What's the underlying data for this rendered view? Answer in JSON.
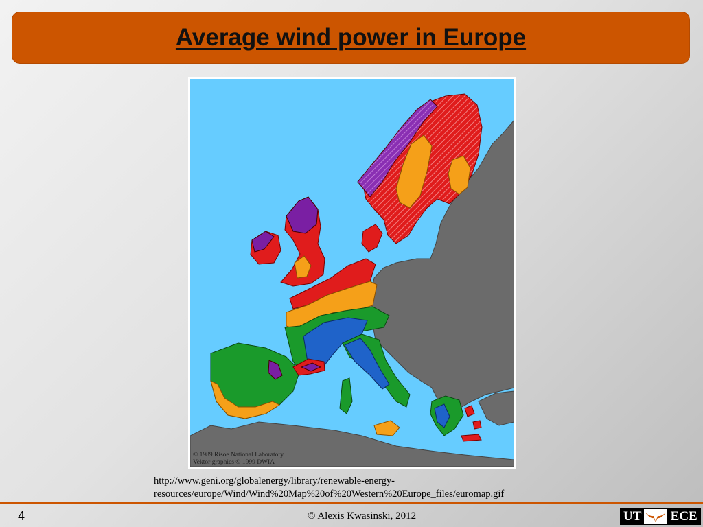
{
  "slide": {
    "title": "Average wind power in Europe",
    "number": "4",
    "copyright": "© Alexis Kwasinski, 2012"
  },
  "map": {
    "credit_line_1": "© 1989 Risoe National Laboratory",
    "credit_line_2": "Vektor graphics © 1999 DWIA",
    "colors": {
      "sea": "#66ccff",
      "land_other": "#6b6b6b",
      "zone_purple": "#7a1fa3",
      "zone_red": "#e01c1c",
      "zone_orange": "#f5a019",
      "zone_green": "#1a9a2b",
      "zone_blue": "#1f63c9"
    }
  },
  "source": {
    "url_line_1": "http://www.geni.org/globalenergy/library/renewable-energy-",
    "url_line_2": "resources/europe/Wind/Wind%20Map%20of%20Western%20Europe_files/euromap.gif"
  },
  "logo": {
    "left": "UT",
    "right": "ECE",
    "icon": "longhorn-icon"
  },
  "theme": {
    "accent": "#cc5500"
  }
}
